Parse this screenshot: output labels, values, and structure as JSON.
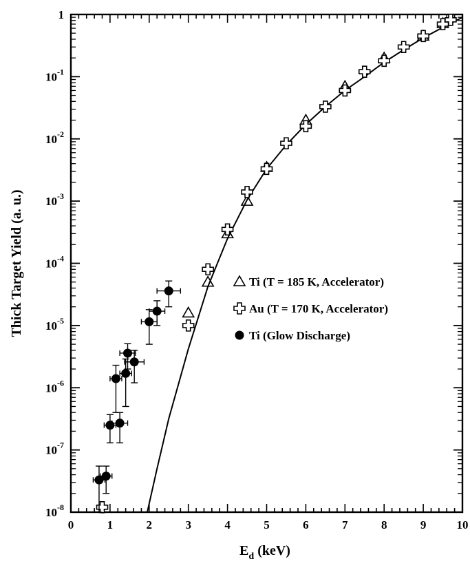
{
  "chart_data": {
    "type": "scatter",
    "title": "",
    "xlabel": "E",
    "xlabel_sub": "d",
    "xlabel_unit": " (keV)",
    "ylabel": "Thick Target Yield (a. u.)",
    "xlim": [
      0,
      10
    ],
    "ylim": [
      1e-08,
      1
    ],
    "yscale": "log",
    "grid": false,
    "legend_position": "right-middle",
    "x_ticks": [
      "0",
      "1",
      "2",
      "3",
      "4",
      "5",
      "6",
      "7",
      "8",
      "9",
      "10"
    ],
    "y_ticks": [
      {
        "value": 1,
        "base": "1",
        "exp": ""
      },
      {
        "value": 0.1,
        "base": "10",
        "exp": "-1"
      },
      {
        "value": 0.01,
        "base": "10",
        "exp": "-2"
      },
      {
        "value": 0.001,
        "base": "10",
        "exp": "-3"
      },
      {
        "value": 0.0001,
        "base": "10",
        "exp": "-4"
      },
      {
        "value": 1e-05,
        "base": "10",
        "exp": "-5"
      },
      {
        "value": 1e-06,
        "base": "10",
        "exp": "-6"
      },
      {
        "value": 1e-07,
        "base": "10",
        "exp": "-7"
      },
      {
        "value": 1e-08,
        "base": "10",
        "exp": "-8"
      }
    ],
    "series": [
      {
        "name": "Ti (T = 185 K, Accelerator)",
        "marker": "triangle",
        "points": [
          {
            "x": 3.0,
            "y": 1.6e-05
          },
          {
            "x": 3.5,
            "y": 5e-05
          },
          {
            "x": 4.0,
            "y": 0.0003
          },
          {
            "x": 4.5,
            "y": 0.001
          },
          {
            "x": 5.0,
            "y": 0.0035
          },
          {
            "x": 6.0,
            "y": 0.02
          },
          {
            "x": 7.0,
            "y": 0.07
          },
          {
            "x": 8.0,
            "y": 0.2
          },
          {
            "x": 9.0,
            "y": 0.45
          },
          {
            "x": 9.5,
            "y": 0.72
          }
        ]
      },
      {
        "name": "Au (T = 170 K, Accelerator)",
        "marker": "cross",
        "points": [
          {
            "x": 0.8,
            "y": 1.2e-08
          },
          {
            "x": 3.0,
            "y": 1e-05
          },
          {
            "x": 3.5,
            "y": 8e-05
          },
          {
            "x": 4.0,
            "y": 0.00035
          },
          {
            "x": 4.5,
            "y": 0.0014
          },
          {
            "x": 5.0,
            "y": 0.0033
          },
          {
            "x": 5.5,
            "y": 0.0085
          },
          {
            "x": 6.0,
            "y": 0.016
          },
          {
            "x": 6.5,
            "y": 0.033
          },
          {
            "x": 7.0,
            "y": 0.06
          },
          {
            "x": 7.5,
            "y": 0.12
          },
          {
            "x": 8.0,
            "y": 0.18
          },
          {
            "x": 8.5,
            "y": 0.3
          },
          {
            "x": 9.0,
            "y": 0.45
          },
          {
            "x": 9.5,
            "y": 0.7
          },
          {
            "x": 9.7,
            "y": 0.82
          }
        ]
      },
      {
        "name": "Ti (Glow Discharge)",
        "marker": "circle",
        "points": [
          {
            "x": 0.72,
            "y": 3.3e-08,
            "xerr": 0.15,
            "ylo": 1e-08,
            "yhi": 5.5e-08
          },
          {
            "x": 0.9,
            "y": 3.8e-08,
            "xerr": 0.15,
            "ylo": 2e-08,
            "yhi": 5.5e-08
          },
          {
            "x": 1.0,
            "y": 2.5e-07,
            "xerr": 0.15,
            "ylo": 1.3e-07,
            "yhi": 3.7e-07
          },
          {
            "x": 1.25,
            "y": 2.7e-07,
            "xerr": 0.2,
            "ylo": 1.3e-07,
            "yhi": 4e-07
          },
          {
            "x": 1.15,
            "y": 1.4e-06,
            "xerr": 0.15,
            "ylo": 4e-07,
            "yhi": 2.3e-06
          },
          {
            "x": 1.4,
            "y": 1.7e-06,
            "xerr": 0.15,
            "ylo": 5e-07,
            "yhi": 2.9e-06
          },
          {
            "x": 1.45,
            "y": 3.6e-06,
            "xerr": 0.2,
            "ylo": 2e-06,
            "yhi": 5.1e-06
          },
          {
            "x": 1.62,
            "y": 2.6e-06,
            "xerr": 0.25,
            "ylo": 1.2e-06,
            "yhi": 4e-06
          },
          {
            "x": 2.0,
            "y": 1.15e-05,
            "xerr": 0.2,
            "ylo": 5e-06,
            "yhi": 1.8e-05
          },
          {
            "x": 2.2,
            "y": 1.7e-05,
            "xerr": 0.2,
            "ylo": 1e-05,
            "yhi": 2.5e-05
          },
          {
            "x": 2.5,
            "y": 3.6e-05,
            "xerr": 0.3,
            "ylo": 2e-05,
            "yhi": 5.2e-05
          }
        ]
      }
    ],
    "fit_curve": {
      "points": [
        {
          "x": 1.95,
          "y": 1e-08
        },
        {
          "x": 2.2,
          "y": 5e-08
        },
        {
          "x": 2.5,
          "y": 3.2e-07
        },
        {
          "x": 3.0,
          "y": 4.2e-06
        },
        {
          "x": 3.5,
          "y": 4.2e-05
        },
        {
          "x": 4.0,
          "y": 0.00025
        },
        {
          "x": 4.5,
          "y": 0.00105
        },
        {
          "x": 5.0,
          "y": 0.0033
        },
        {
          "x": 5.5,
          "y": 0.008
        },
        {
          "x": 6.0,
          "y": 0.017
        },
        {
          "x": 6.5,
          "y": 0.033
        },
        {
          "x": 7.0,
          "y": 0.06
        },
        {
          "x": 7.5,
          "y": 0.1
        },
        {
          "x": 8.0,
          "y": 0.17
        },
        {
          "x": 8.5,
          "y": 0.27
        },
        {
          "x": 9.0,
          "y": 0.42
        },
        {
          "x": 9.5,
          "y": 0.62
        },
        {
          "x": 10.0,
          "y": 0.9
        }
      ]
    },
    "legend": [
      {
        "marker": "triangle",
        "label": "Ti (T = 185 K, Accelerator)"
      },
      {
        "marker": "cross",
        "label": "Au (T = 170 K, Accelerator)"
      },
      {
        "marker": "circle",
        "label": "Ti (Glow Discharge)"
      }
    ]
  }
}
